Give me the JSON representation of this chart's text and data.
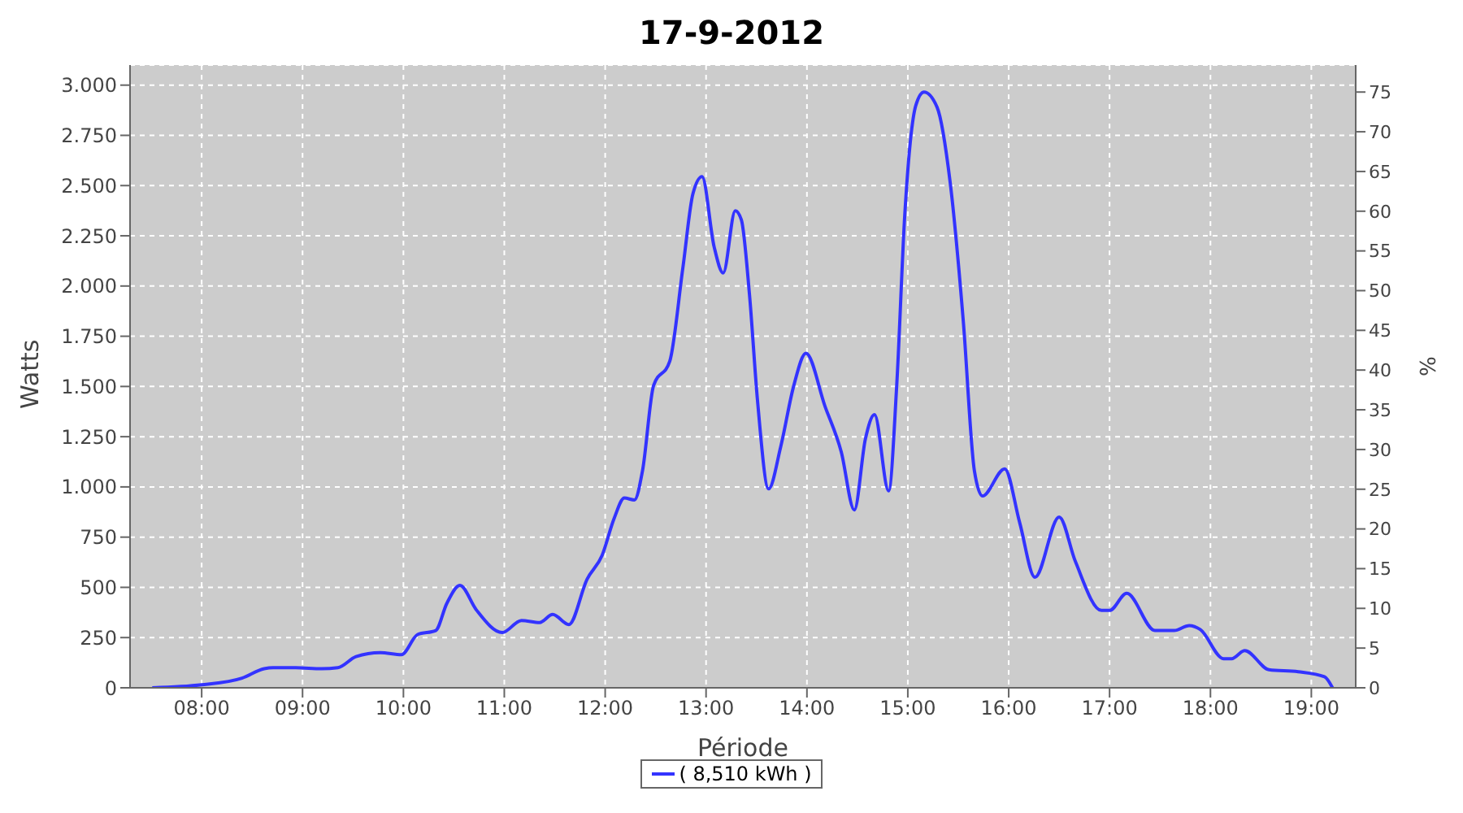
{
  "chart_data": {
    "type": "line",
    "title": "17-9-2012",
    "xlabel": "Période",
    "ylabel": "Watts",
    "y2label": "%",
    "xlim": [
      7.29,
      19.44
    ],
    "xticks": [
      {
        "value": 8,
        "label": "08:00"
      },
      {
        "value": 9,
        "label": "09:00"
      },
      {
        "value": 10,
        "label": "10:00"
      },
      {
        "value": 11,
        "label": "11:00"
      },
      {
        "value": 12,
        "label": "12:00"
      },
      {
        "value": 13,
        "label": "13:00"
      },
      {
        "value": 14,
        "label": "14:00"
      },
      {
        "value": 15,
        "label": "15:00"
      },
      {
        "value": 16,
        "label": "16:00"
      },
      {
        "value": 17,
        "label": "17:00"
      },
      {
        "value": 18,
        "label": "18:00"
      },
      {
        "value": 19,
        "label": "19:00"
      }
    ],
    "ylim": [
      0,
      3100
    ],
    "yticks": [
      0,
      250,
      500,
      750,
      {
        "value": 1000,
        "label": "1.000"
      },
      {
        "value": 1250,
        "label": "1.250"
      },
      {
        "value": 1500,
        "label": "1.500"
      },
      {
        "value": 1750,
        "label": "1.750"
      },
      {
        "value": 2000,
        "label": "2.000"
      },
      {
        "value": 2250,
        "label": "2.250"
      },
      {
        "value": 2500,
        "label": "2.500"
      },
      {
        "value": 2750,
        "label": "2.750"
      },
      {
        "value": 3000,
        "label": "3.000"
      }
    ],
    "y2lim": [
      0,
      78.4
    ],
    "y2ticks": [
      0,
      5,
      10,
      15,
      20,
      25,
      30,
      35,
      40,
      45,
      50,
      55,
      60,
      65,
      70,
      75
    ],
    "grid": true,
    "legend": "bottom",
    "marker": "none",
    "line_style": "solid",
    "x": [
      7.51,
      8.0,
      8.4,
      8.62,
      8.71,
      8.93,
      9.19,
      9.35,
      9.53,
      9.77,
      9.98,
      10.14,
      10.32,
      10.43,
      10.56,
      10.72,
      10.98,
      11.17,
      11.35,
      11.48,
      11.64,
      11.82,
      11.97,
      12.09,
      12.19,
      12.29,
      12.37,
      12.48,
      12.64,
      12.77,
      12.87,
      12.96,
      13.08,
      13.17,
      13.29,
      13.35,
      13.43,
      13.51,
      13.62,
      13.74,
      13.87,
      13.99,
      14.18,
      14.34,
      14.47,
      14.58,
      14.67,
      14.81,
      14.89,
      14.97,
      15.08,
      15.16,
      15.29,
      15.42,
      15.55,
      15.66,
      15.74,
      15.96,
      16.11,
      16.26,
      16.5,
      16.66,
      16.92,
      17.0,
      17.17,
      17.45,
      17.64,
      17.79,
      17.9,
      18.13,
      18.21,
      18.34,
      18.58,
      18.87,
      19.13,
      19.21
    ],
    "series": [
      {
        "name": "( 8,510 kWh )",
        "color": "#3333ff",
        "values": [
          0,
          15,
          48,
          95,
          100,
          100,
          95,
          100,
          155,
          175,
          165,
          265,
          285,
          420,
          510,
          390,
          275,
          335,
          325,
          365,
          315,
          540,
          660,
          845,
          945,
          935,
          1080,
          1505,
          1625,
          2090,
          2460,
          2545,
          2195,
          2065,
          2375,
          2330,
          1960,
          1430,
          990,
          1200,
          1505,
          1665,
          1400,
          1175,
          885,
          1240,
          1360,
          980,
          1505,
          2355,
          2900,
          2965,
          2890,
          2515,
          1825,
          1080,
          955,
          1090,
          820,
          550,
          850,
          630,
          385,
          385,
          470,
          285,
          285,
          310,
          290,
          145,
          145,
          185,
          90,
          80,
          55,
          0
        ]
      }
    ]
  }
}
